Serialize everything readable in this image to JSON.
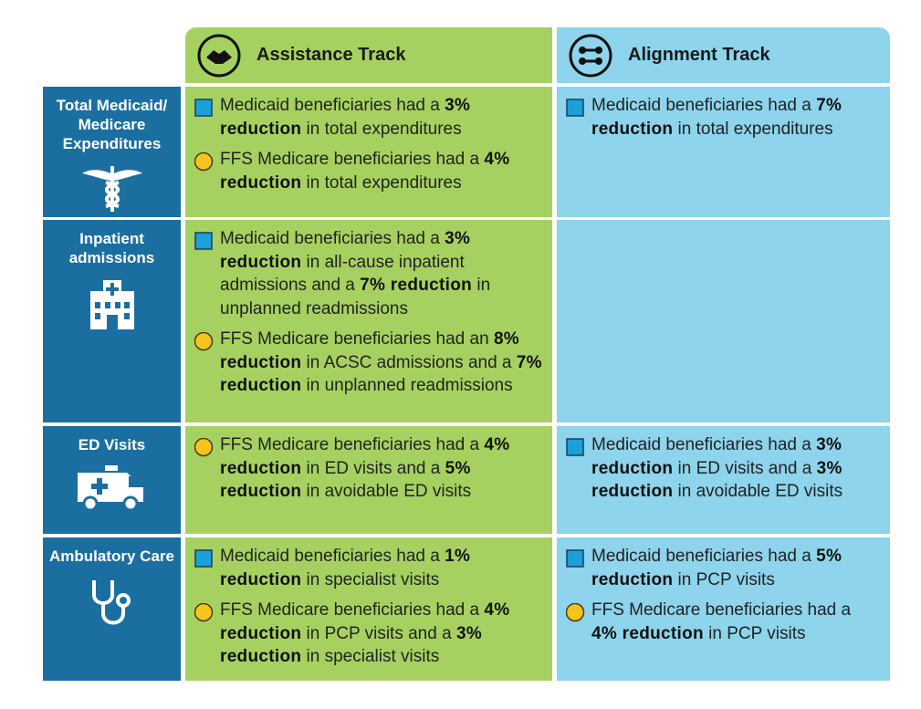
{
  "header": {
    "assistance": "Assistance Track",
    "alignment": "Alignment Track"
  },
  "rows": [
    {
      "label": "Total Medicaid/ Medicare Expenditures",
      "assistance": [
        {
          "marker": "square",
          "parts": [
            "Medicaid beneficiaries had a ",
            "3% reduction",
            " in total expenditures"
          ]
        },
        {
          "marker": "circle",
          "parts": [
            "FFS Medicare beneficiaries had a ",
            "4% reduction",
            " in total expenditures"
          ]
        }
      ],
      "alignment": [
        {
          "marker": "square",
          "parts": [
            "Medicaid beneficiaries had a ",
            "7% reduction",
            " in total expenditures"
          ]
        }
      ]
    },
    {
      "label": "Inpatient admissions",
      "assistance": [
        {
          "marker": "square",
          "parts": [
            "Medicaid beneficiaries had a ",
            "3% reduction",
            " in all-cause inpatient admissions and a ",
            "7% reduction",
            " in unplanned readmissions"
          ]
        },
        {
          "marker": "circle",
          "parts": [
            "FFS Medicare beneficiaries had an ",
            "8% reduction",
            " in ACSC admissions and a ",
            "7% reduction",
            " in unplanned readmissions"
          ]
        }
      ],
      "alignment": []
    },
    {
      "label": "ED Visits",
      "assistance": [
        {
          "marker": "circle",
          "parts": [
            "FFS Medicare beneficiaries had a ",
            "4% reduction",
            " in ED visits and a ",
            "5% reduction",
            " in avoidable ED visits"
          ]
        }
      ],
      "alignment": [
        {
          "marker": "square",
          "parts": [
            "Medicaid beneficiaries had a ",
            "3% reduction",
            " in ED visits and a ",
            "3% reduction",
            " in avoidable ED visits"
          ]
        }
      ]
    },
    {
      "label": "Ambulatory Care",
      "assistance": [
        {
          "marker": "square",
          "parts": [
            "Medicaid beneficiaries had a ",
            "1% reduction",
            " in specialist visits"
          ]
        },
        {
          "marker": "circle",
          "parts": [
            "FFS Medicare beneficiaries had a ",
            "4% reduction",
            " in PCP visits and a ",
            "3% reduction",
            " in specialist visits"
          ]
        }
      ],
      "alignment": [
        {
          "marker": "square",
          "parts": [
            "Medicaid beneficiaries had a ",
            "5% reduction",
            " in PCP visits"
          ]
        },
        {
          "marker": "circle",
          "parts": [
            "FFS Medicare beneficiaries had a ",
            "4% reduction",
            " in PCP visits"
          ]
        }
      ]
    }
  ]
}
